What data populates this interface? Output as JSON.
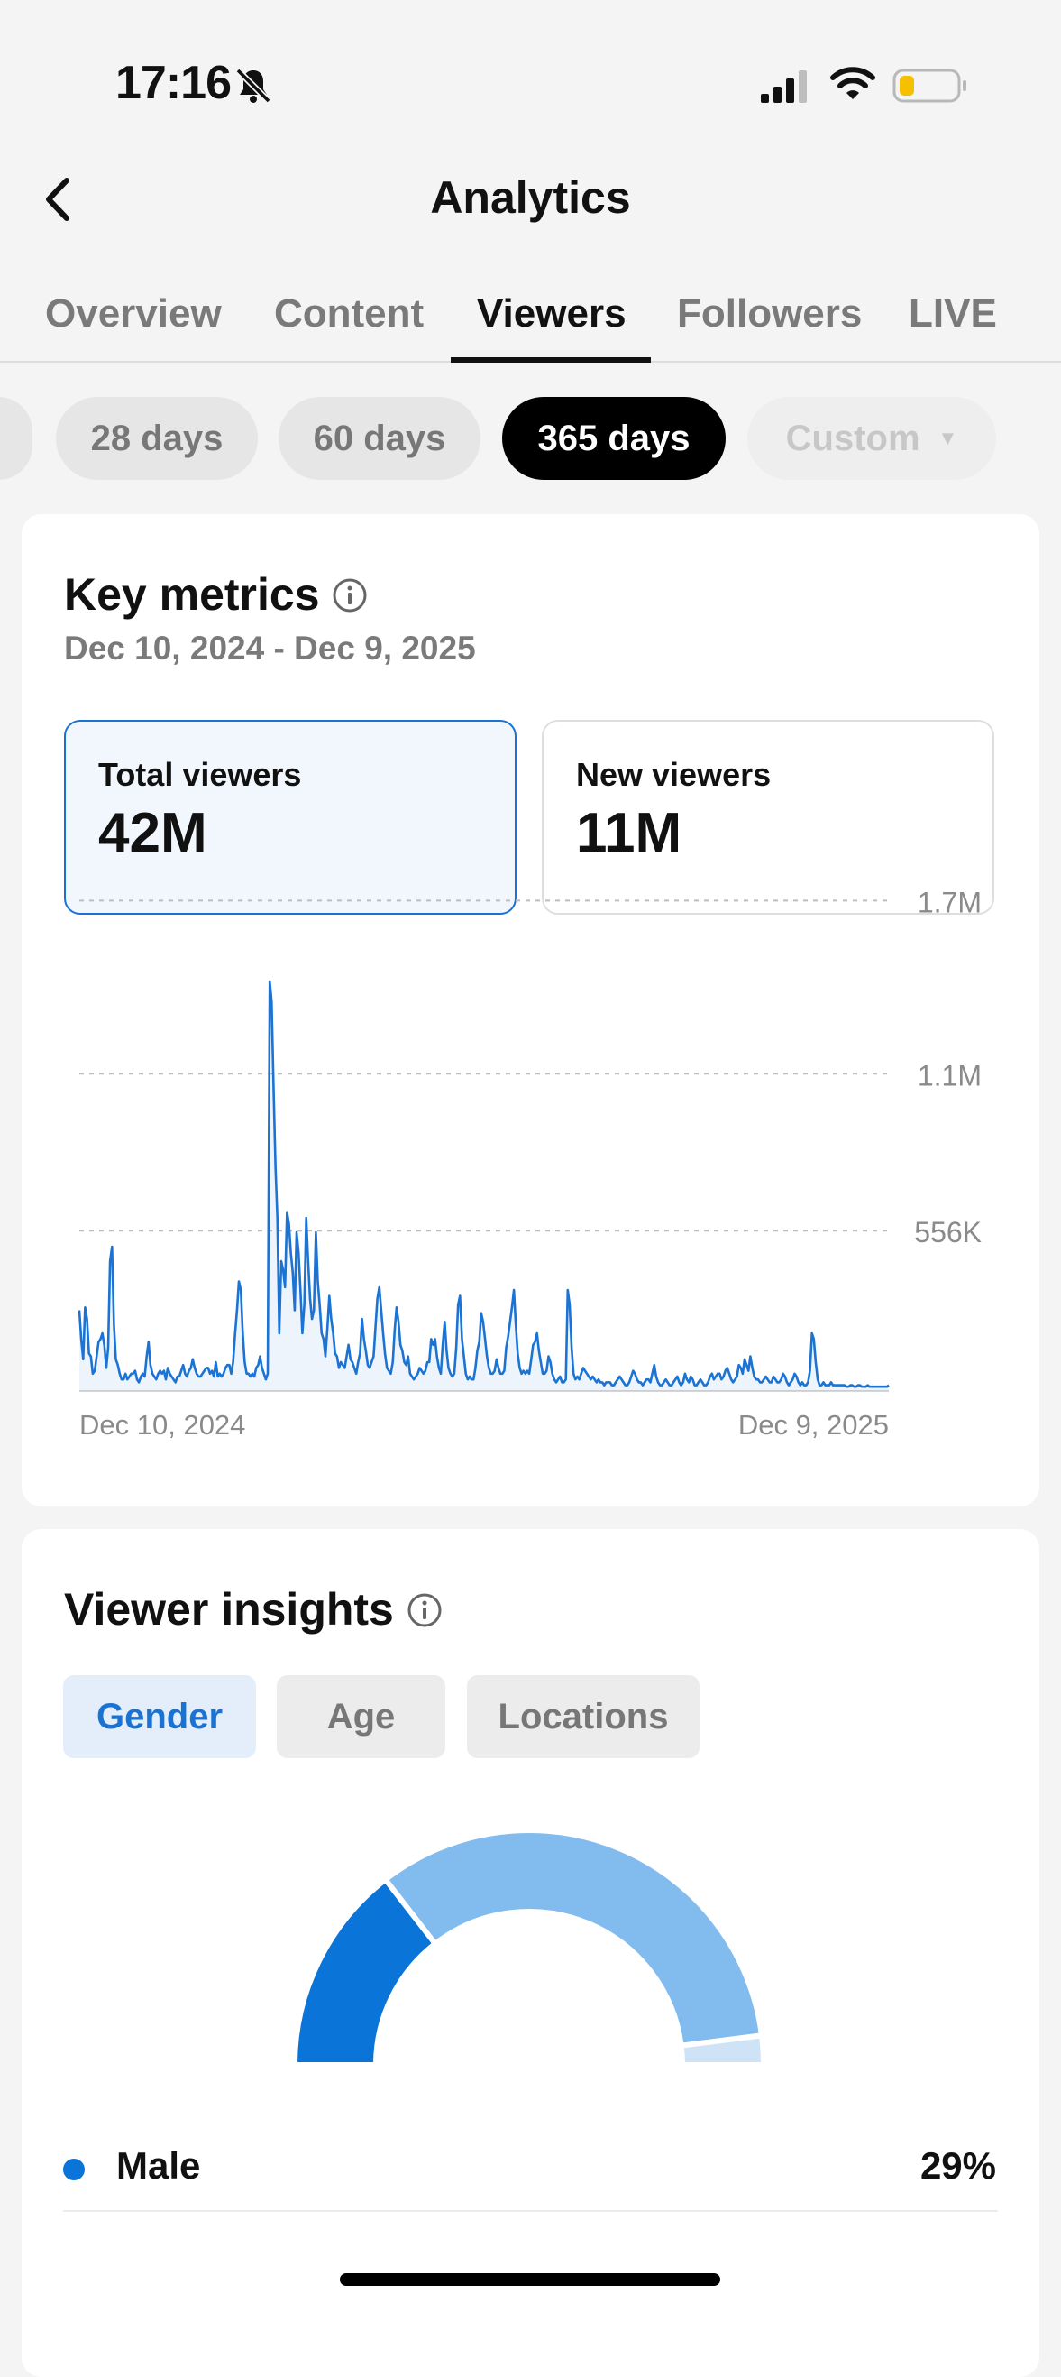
{
  "status_bar": {
    "time": "17:16",
    "icons": [
      "bell-slash-icon",
      "signal-icon",
      "wifi-icon",
      "battery-icon"
    ],
    "battery_color": "#f5c000"
  },
  "header": {
    "title": "Analytics",
    "back_icon": "chevron-left-icon"
  },
  "tabs": [
    {
      "label": "Overview",
      "active": false
    },
    {
      "label": "Content",
      "active": false
    },
    {
      "label": "Viewers",
      "active": true
    },
    {
      "label": "Followers",
      "active": false
    },
    {
      "label": "LIVE",
      "active": false
    }
  ],
  "ranges": [
    {
      "label": "28 days"
    },
    {
      "label": "60 days"
    },
    {
      "label": "365 days",
      "active": true
    },
    {
      "label": "Custom",
      "disabled": true
    }
  ],
  "key_metrics": {
    "title": "Key metrics",
    "date_range": "Dec 10, 2024 - Dec 9, 2025",
    "metrics": [
      {
        "label": "Total viewers",
        "value": "42M",
        "selected": true
      },
      {
        "label": "New viewers",
        "value": "11M",
        "selected": false
      }
    ]
  },
  "colors": {
    "accent": "#1a73d2",
    "line": "#1b73d3",
    "donut_dark": "#0b74d8",
    "donut_light": "#82bbed"
  },
  "chart_data": {
    "type": "line",
    "x_start_label": "Dec 10, 2024",
    "x_end_label": "Dec 9, 2025",
    "y_ticks": [
      {
        "value": 556000,
        "label": "556K"
      },
      {
        "value": 1100000,
        "label": "1.1M"
      },
      {
        "value": 1700000,
        "label": "1.7M"
      }
    ],
    "ylim": [
      0,
      1670000
    ],
    "grid": true,
    "series": [
      {
        "values": [
          280000,
          180000,
          110000,
          290000,
          250000,
          130000,
          120000,
          60000,
          70000,
          120000,
          170000,
          180000,
          200000,
          160000,
          80000,
          150000,
          450000,
          500000,
          230000,
          110000,
          90000,
          60000,
          40000,
          40000,
          60000,
          40000,
          50000,
          60000,
          60000,
          70000,
          40000,
          30000,
          50000,
          60000,
          50000,
          120000,
          170000,
          90000,
          60000,
          50000,
          40000,
          60000,
          70000,
          60000,
          70000,
          40000,
          80000,
          60000,
          50000,
          40000,
          30000,
          50000,
          50000,
          70000,
          90000,
          60000,
          50000,
          70000,
          80000,
          110000,
          80000,
          60000,
          50000,
          50000,
          60000,
          70000,
          80000,
          80000,
          60000,
          70000,
          50000,
          100000,
          50000,
          60000,
          50000,
          60000,
          80000,
          90000,
          90000,
          60000,
          100000,
          200000,
          280000,
          380000,
          350000,
          200000,
          100000,
          60000,
          60000,
          50000,
          60000,
          50000,
          80000,
          90000,
          120000,
          80000,
          60000,
          40000,
          60000,
          1420000,
          1350000,
          1060000,
          780000,
          600000,
          200000,
          450000,
          420000,
          360000,
          620000,
          580000,
          480000,
          410000,
          280000,
          550000,
          480000,
          350000,
          200000,
          300000,
          600000,
          450000,
          320000,
          250000,
          280000,
          550000,
          380000,
          300000,
          200000,
          180000,
          120000,
          220000,
          330000,
          250000,
          200000,
          130000,
          120000,
          80000,
          100000,
          90000,
          80000,
          120000,
          160000,
          110000,
          100000,
          80000,
          60000,
          100000,
          130000,
          250000,
          180000,
          140000,
          90000,
          80000,
          100000,
          120000,
          220000,
          320000,
          360000,
          280000,
          200000,
          130000,
          80000,
          70000,
          60000,
          100000,
          210000,
          290000,
          240000,
          160000,
          140000,
          100000,
          90000,
          120000,
          60000,
          50000,
          40000,
          50000,
          60000,
          80000,
          70000,
          60000,
          70000,
          100000,
          100000,
          180000,
          160000,
          180000,
          120000,
          80000,
          60000,
          160000,
          240000,
          140000,
          80000,
          60000,
          50000,
          60000,
          150000,
          300000,
          330000,
          180000,
          120000,
          60000,
          40000,
          50000,
          40000,
          40000,
          80000,
          140000,
          170000,
          270000,
          240000,
          180000,
          120000,
          80000,
          60000,
          60000,
          70000,
          110000,
          80000,
          60000,
          60000,
          70000,
          150000,
          190000,
          240000,
          290000,
          350000,
          230000,
          130000,
          80000,
          60000,
          70000,
          60000,
          70000,
          60000,
          110000,
          160000,
          170000,
          200000,
          140000,
          100000,
          60000,
          60000,
          70000,
          120000,
          100000,
          60000,
          40000,
          30000,
          40000,
          50000,
          30000,
          30000,
          40000,
          350000,
          300000,
          150000,
          60000,
          40000,
          50000,
          40000,
          60000,
          80000,
          70000,
          60000,
          50000,
          40000,
          50000,
          40000,
          30000,
          40000,
          30000,
          30000,
          20000,
          30000,
          30000,
          30000,
          20000,
          20000,
          30000,
          40000,
          50000,
          40000,
          30000,
          20000,
          20000,
          30000,
          50000,
          70000,
          60000,
          40000,
          30000,
          30000,
          20000,
          30000,
          40000,
          40000,
          30000,
          60000,
          90000,
          50000,
          30000,
          20000,
          20000,
          30000,
          40000,
          30000,
          20000,
          20000,
          30000,
          40000,
          50000,
          30000,
          20000,
          30000,
          60000,
          40000,
          30000,
          50000,
          40000,
          20000,
          20000,
          30000,
          40000,
          30000,
          20000,
          20000,
          30000,
          50000,
          60000,
          40000,
          50000,
          60000,
          60000,
          40000,
          50000,
          70000,
          80000,
          60000,
          40000,
          30000,
          40000,
          50000,
          90000,
          80000,
          60000,
          110000,
          90000,
          70000,
          120000,
          80000,
          50000,
          40000,
          40000,
          30000,
          30000,
          40000,
          50000,
          40000,
          30000,
          30000,
          50000,
          40000,
          30000,
          30000,
          40000,
          60000,
          50000,
          30000,
          20000,
          30000,
          40000,
          60000,
          50000,
          30000,
          20000,
          30000,
          20000,
          20000,
          30000,
          70000,
          200000,
          180000,
          100000,
          40000,
          20000,
          20000,
          30000,
          20000,
          20000,
          20000,
          30000,
          20000,
          20000,
          20000,
          20000,
          20000,
          20000,
          20000,
          15000,
          15000,
          20000,
          20000,
          15000,
          15000,
          20000,
          20000,
          15000,
          15000,
          15000,
          20000,
          15000,
          15000,
          15000,
          15000,
          15000,
          15000,
          15000,
          15000,
          15000,
          15000,
          20000
        ]
      }
    ]
  },
  "viewer_insights": {
    "title": "Viewer insights",
    "segments": [
      {
        "label": "Gender",
        "active": true
      },
      {
        "label": "Age",
        "active": false
      },
      {
        "label": "Locations",
        "active": false
      }
    ],
    "gender": [
      {
        "label": "Male",
        "value": "29%",
        "fraction": 0.29,
        "color": "#0b74d8"
      },
      {
        "fraction": 0.67,
        "color": "#82bbed"
      },
      {
        "fraction": 0.04,
        "color": "#cfe3f7"
      }
    ]
  }
}
